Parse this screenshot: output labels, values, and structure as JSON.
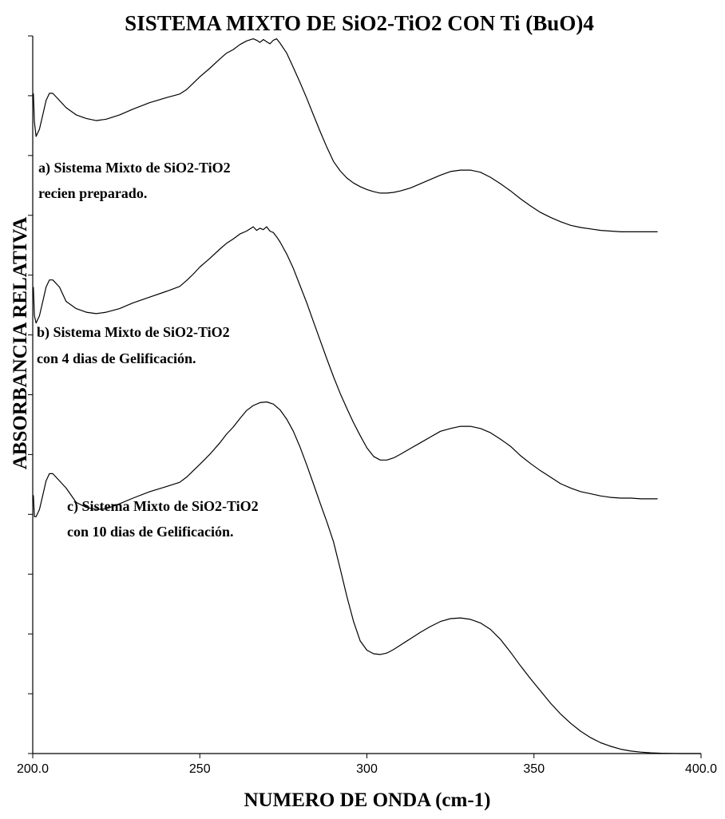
{
  "chart_data": {
    "type": "line",
    "title": "SISTEMA MIXTO DE SiO2-TiO2 CON Ti (BuO)4",
    "xlabel": "NUMERO DE ONDA (cm-1)",
    "ylabel": "ABSORBANCIA RELATIVA",
    "xlim": [
      200,
      400
    ],
    "ylim": [
      0,
      100
    ],
    "x_ticks": [
      "200.0",
      "250",
      "300",
      "350",
      "400.0"
    ],
    "x_tick_values": [
      200,
      250,
      300,
      350,
      400
    ],
    "y_tick_count": 13,
    "grid": false,
    "legend": "none",
    "series": [
      {
        "x": [
          200.2,
          200.5,
          201,
          202,
          203,
          204,
          205,
          206,
          208,
          210,
          213,
          216,
          219,
          222,
          226,
          230,
          235,
          240,
          244,
          246,
          248,
          250,
          253,
          256,
          258,
          260,
          262,
          264,
          266,
          267,
          268,
          269,
          270,
          271,
          272,
          273,
          274,
          276,
          278,
          280,
          282,
          284,
          286,
          288,
          290,
          292,
          294,
          296,
          298,
          300,
          302,
          304,
          306,
          308,
          310,
          313,
          316,
          319,
          322,
          325,
          328,
          331,
          334,
          337,
          340,
          343,
          346,
          349,
          352,
          355,
          358,
          361,
          364,
          367,
          370,
          373,
          376,
          379,
          382,
          385,
          387
        ],
        "y": [
          92,
          88,
          86,
          87,
          89,
          91,
          92,
          92,
          91,
          90,
          89,
          88.5,
          88.2,
          88.4,
          89,
          89.8,
          90.7,
          91.4,
          91.9,
          92.5,
          93.4,
          94.3,
          95.5,
          96.8,
          97.6,
          98.1,
          98.8,
          99.3,
          99.6,
          99.4,
          99.1,
          99.5,
          99.2,
          98.9,
          99.4,
          99.6,
          99.0,
          97.6,
          95.6,
          93.5,
          91.3,
          89.0,
          86.7,
          84.5,
          82.5,
          81.2,
          80.2,
          79.5,
          79.0,
          78.6,
          78.3,
          78.1,
          78.1,
          78.2,
          78.4,
          78.8,
          79.4,
          80.0,
          80.6,
          81.1,
          81.3,
          81.3,
          81.0,
          80.3,
          79.4,
          78.4,
          77.3,
          76.3,
          75.4,
          74.7,
          74.1,
          73.6,
          73.3,
          73.1,
          72.9,
          72.8,
          72.7,
          72.7,
          72.7,
          72.7,
          72.7
        ]
      },
      {
        "x": [
          200.2,
          200.5,
          201,
          202,
          203,
          204,
          205,
          206,
          208,
          210,
          213,
          216,
          219,
          222,
          226,
          230,
          235,
          240,
          244,
          246,
          248,
          250,
          253,
          256,
          258,
          260,
          262,
          264,
          266,
          267,
          268,
          269,
          270,
          271,
          272,
          273,
          274,
          276,
          278,
          280,
          282,
          284,
          286,
          288,
          290,
          292,
          294,
          296,
          298,
          300,
          302,
          304,
          306,
          308,
          310,
          313,
          316,
          319,
          322,
          325,
          328,
          331,
          334,
          337,
          340,
          343,
          346,
          349,
          352,
          355,
          358,
          361,
          364,
          367,
          370,
          373,
          376,
          379,
          382,
          385,
          387
        ],
        "y": [
          65,
          61,
          60,
          61,
          63,
          65,
          66,
          66,
          65,
          63,
          62,
          61.5,
          61.3,
          61.5,
          62,
          62.8,
          63.6,
          64.4,
          65.1,
          65.9,
          66.8,
          67.8,
          69.0,
          70.3,
          71.1,
          71.7,
          72.4,
          72.8,
          73.4,
          72.9,
          73.2,
          73.0,
          73.4,
          72.8,
          72.6,
          72.0,
          71.3,
          69.6,
          67.6,
          65.2,
          62.8,
          60.2,
          57.6,
          55.0,
          52.5,
          50.2,
          48.1,
          46.1,
          44.3,
          42.6,
          41.4,
          40.9,
          40.9,
          41.2,
          41.7,
          42.5,
          43.3,
          44.1,
          44.9,
          45.3,
          45.6,
          45.6,
          45.3,
          44.7,
          43.8,
          42.8,
          41.5,
          40.4,
          39.4,
          38.5,
          37.6,
          37.0,
          36.5,
          36.2,
          35.9,
          35.7,
          35.6,
          35.6,
          35.5,
          35.5,
          35.5
        ]
      },
      {
        "x": [
          200.2,
          200.5,
          201,
          202,
          203,
          204,
          205,
          206,
          208,
          210,
          213,
          216,
          219,
          222,
          226,
          230,
          235,
          240,
          244,
          246,
          248,
          250,
          253,
          256,
          258,
          260,
          262,
          264,
          266,
          268,
          270,
          272,
          274,
          276,
          278,
          280,
          282,
          284,
          286,
          288,
          290,
          292,
          294,
          296,
          298,
          300,
          302,
          304,
          306,
          308,
          310,
          313,
          316,
          319,
          322,
          325,
          328,
          331,
          334,
          337,
          340,
          343,
          346,
          349,
          352,
          355,
          358,
          361,
          364,
          367,
          370,
          373,
          376,
          379,
          382,
          385,
          388,
          391,
          394,
          397,
          400
        ],
        "y": [
          36,
          33,
          33,
          34,
          36,
          38,
          39,
          39,
          38,
          37,
          35,
          34.3,
          34.0,
          34.1,
          34.8,
          35.6,
          36.5,
          37.2,
          37.8,
          38.5,
          39.4,
          40.3,
          41.7,
          43.3,
          44.5,
          45.5,
          46.7,
          47.8,
          48.5,
          48.9,
          49.0,
          48.7,
          47.9,
          46.6,
          44.9,
          42.7,
          40.2,
          37.6,
          34.9,
          32.3,
          29.5,
          25.8,
          21.9,
          18.4,
          15.7,
          14.4,
          13.9,
          13.8,
          14.0,
          14.5,
          15.1,
          16.0,
          16.9,
          17.7,
          18.4,
          18.8,
          18.9,
          18.7,
          18.2,
          17.3,
          15.9,
          14.1,
          12.2,
          10.4,
          8.7,
          7.0,
          5.5,
          4.2,
          3.1,
          2.2,
          1.5,
          1.0,
          0.6,
          0.35,
          0.2,
          0.1,
          0.05,
          0.02,
          0,
          0,
          0
        ]
      }
    ],
    "annotations": [
      {
        "lines": [
          "a) Sistema Mixto de SiO2-TiO2",
          "recien preparado."
        ]
      },
      {
        "lines": [
          "b) Sistema Mixto de SiO2-TiO2",
          "con 4 dias de Gelificación."
        ]
      },
      {
        "lines": [
          "c) Sistema Mixto de SiO2-TiO2",
          "con 10 dias de Gelificación."
        ]
      }
    ]
  }
}
